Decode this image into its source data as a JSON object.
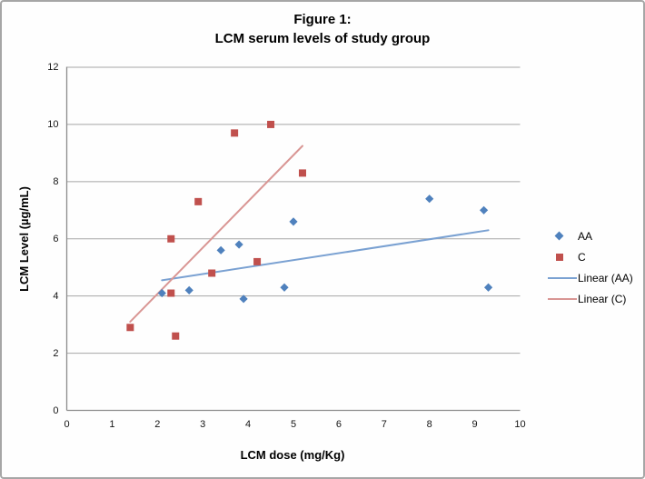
{
  "figure": {
    "title_line1": "Figure 1:",
    "title_line2": "LCM serum levels of study group"
  },
  "chart_data": {
    "type": "scatter",
    "title": "Figure 1: LCM serum levels of study group",
    "xlabel": "LCM dose (mg/Kg)",
    "ylabel": "LCM Level (µg/mL)",
    "xlim": [
      0,
      10
    ],
    "ylim": [
      0,
      12
    ],
    "x_ticks": [
      0,
      1,
      2,
      3,
      4,
      5,
      6,
      7,
      8,
      9,
      10
    ],
    "y_ticks": [
      0,
      2,
      4,
      6,
      8,
      10,
      12
    ],
    "grid": "horizontal-only",
    "legend_position": "right",
    "colors": {
      "gridline": "#a6a6a6",
      "axis": "#8c8c8c",
      "series_aa": "#4f81bd",
      "series_c": "#c0504d",
      "trend_aa": "#7aa1d2",
      "trend_c": "#d99694"
    },
    "series": [
      {
        "name": "AA",
        "marker": "diamond",
        "color": "#4f81bd",
        "points": [
          [
            2.1,
            4.1
          ],
          [
            2.7,
            4.2
          ],
          [
            3.4,
            5.6
          ],
          [
            3.8,
            5.8
          ],
          [
            3.9,
            3.9
          ],
          [
            4.8,
            4.3
          ],
          [
            5.0,
            6.6
          ],
          [
            8.0,
            7.4
          ],
          [
            9.2,
            7.0
          ],
          [
            9.3,
            4.3
          ]
        ]
      },
      {
        "name": "C",
        "marker": "square",
        "color": "#c0504d",
        "points": [
          [
            1.4,
            2.9
          ],
          [
            2.3,
            4.1
          ],
          [
            2.3,
            6.0
          ],
          [
            2.4,
            2.6
          ],
          [
            2.9,
            7.3
          ],
          [
            3.2,
            4.8
          ],
          [
            3.7,
            9.7
          ],
          [
            4.2,
            5.2
          ],
          [
            4.5,
            10.0
          ],
          [
            5.2,
            8.3
          ]
        ]
      }
    ],
    "trendlines": [
      {
        "name": "Linear (AA)",
        "color": "#7aa1d2",
        "x1": 2.1,
        "y1": 4.55,
        "x2": 9.3,
        "y2": 6.3
      },
      {
        "name": "Linear (C)",
        "color": "#d99694",
        "x1": 1.4,
        "y1": 3.1,
        "x2": 5.2,
        "y2": 9.25
      }
    ],
    "legend": {
      "items": [
        {
          "label": "AA",
          "swatch": "diamond",
          "color": "#4f81bd"
        },
        {
          "label": "C",
          "swatch": "square",
          "color": "#c0504d"
        },
        {
          "label": "Linear (AA)",
          "swatch": "line",
          "color": "#7aa1d2"
        },
        {
          "label": "Linear (C)",
          "swatch": "line",
          "color": "#d99694"
        }
      ]
    }
  }
}
